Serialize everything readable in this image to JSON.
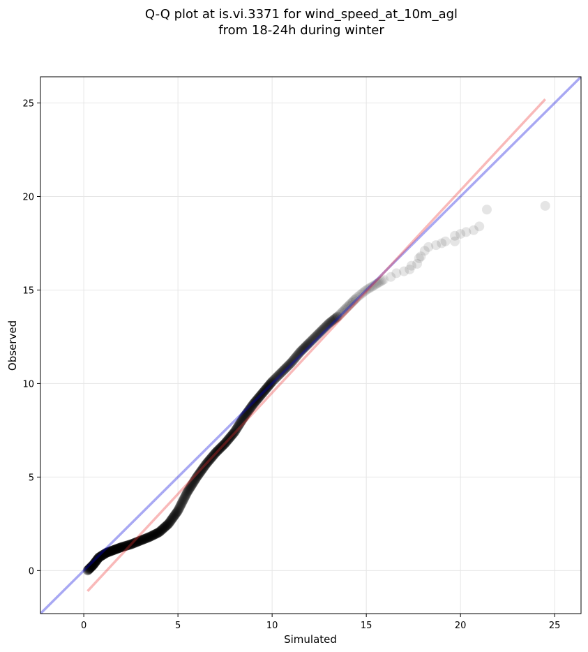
{
  "chart_data": {
    "type": "scatter",
    "title": [
      "Q-Q plot at is.vi.3371 for wind_speed_at_10m_agl",
      "from 18-24h during winter"
    ],
    "xlabel": "Simulated",
    "ylabel": "Observed",
    "xlim": [
      -2.3,
      26.4
    ],
    "ylim": [
      -2.3,
      26.4
    ],
    "xticks": [
      0,
      5,
      10,
      15,
      20,
      25
    ],
    "yticks": [
      0,
      5,
      10,
      15,
      20,
      25
    ],
    "grid": true,
    "reference_lines": [
      {
        "kind": "identity",
        "color": "#0000dd",
        "from": [
          -2.3,
          -2.3
        ],
        "to": [
          26.4,
          26.4
        ]
      },
      {
        "kind": "fit",
        "color": "#ee3333",
        "from": [
          0.2,
          -1.1
        ],
        "to": [
          24.5,
          25.2
        ]
      }
    ],
    "point_color": "#000000",
    "curve_knots": [
      [
        0.2,
        0.0
      ],
      [
        0.5,
        0.3
      ],
      [
        0.8,
        0.7
      ],
      [
        1.2,
        0.95
      ],
      [
        1.6,
        1.1
      ],
      [
        2.0,
        1.25
      ],
      [
        2.5,
        1.4
      ],
      [
        3.0,
        1.6
      ],
      [
        3.5,
        1.8
      ],
      [
        4.0,
        2.05
      ],
      [
        4.5,
        2.5
      ],
      [
        5.0,
        3.2
      ],
      [
        5.5,
        4.2
      ],
      [
        6.0,
        5.0
      ],
      [
        6.5,
        5.7
      ],
      [
        7.0,
        6.3
      ],
      [
        7.5,
        6.8
      ],
      [
        8.0,
        7.4
      ],
      [
        8.5,
        8.2
      ],
      [
        9.0,
        8.9
      ],
      [
        9.5,
        9.5
      ],
      [
        10.0,
        10.1
      ],
      [
        10.5,
        10.6
      ],
      [
        11.0,
        11.1
      ],
      [
        11.5,
        11.7
      ],
      [
        12.0,
        12.2
      ],
      [
        12.5,
        12.7
      ],
      [
        13.0,
        13.2
      ],
      [
        13.5,
        13.6
      ],
      [
        14.0,
        14.1
      ],
      [
        14.5,
        14.6
      ],
      [
        15.0,
        15.0
      ],
      [
        15.5,
        15.3
      ],
      [
        16.0,
        15.6
      ]
    ],
    "tail_points": [
      [
        16.3,
        15.7
      ],
      [
        16.6,
        15.9
      ],
      [
        17.0,
        16.0
      ],
      [
        17.3,
        16.1
      ],
      [
        17.4,
        16.3
      ],
      [
        17.7,
        16.4
      ],
      [
        17.8,
        16.7
      ],
      [
        17.9,
        16.8
      ],
      [
        18.1,
        17.1
      ],
      [
        18.3,
        17.3
      ],
      [
        18.7,
        17.4
      ],
      [
        19.0,
        17.5
      ],
      [
        19.2,
        17.6
      ],
      [
        19.7,
        17.6
      ],
      [
        19.7,
        17.9
      ],
      [
        20.0,
        18.0
      ],
      [
        20.3,
        18.1
      ],
      [
        20.7,
        18.2
      ],
      [
        21.0,
        18.4
      ],
      [
        21.4,
        19.3
      ],
      [
        24.5,
        19.5
      ]
    ]
  }
}
